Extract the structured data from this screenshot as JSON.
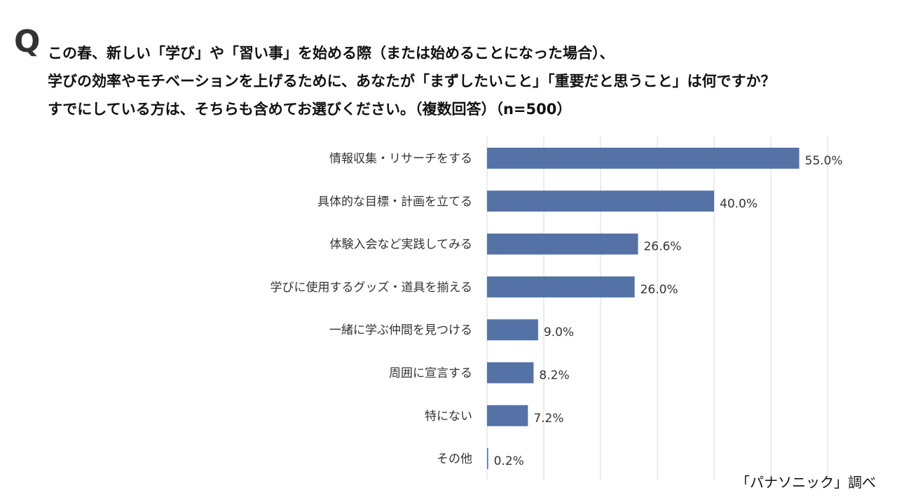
{
  "question": {
    "mark": "Q",
    "lines": [
      "この春、新しい「学び」や「習い事」を始める際（または始めることになった場合）、",
      "学びの効率やモチベーションを上げるために、あなたが「まずしたいこと」「重要だと思うこと」は何ですか？",
      "すでにしている方は、そちらも含めてお選びください。（複数回答）（n=500）"
    ]
  },
  "chart_data": {
    "type": "bar",
    "orientation": "horizontal",
    "categories": [
      "情報収集・リサーチをする",
      "具体的な目標・計画を立てる",
      "体験入会など実践してみる",
      "学びに使用するグッズ・道具を揃える",
      "一緒に学ぶ仲間を見つける",
      "周囲に宣言する",
      "特にない",
      "その他"
    ],
    "values": [
      55.0,
      40.0,
      26.6,
      26.0,
      9.0,
      8.2,
      7.2,
      0.2
    ],
    "value_labels": [
      "55.0%",
      "40.0%",
      "26.6%",
      "26.0%",
      "9.0%",
      "8.2%",
      "7.2%",
      "0.2%"
    ],
    "xlim": [
      0,
      60
    ],
    "grid": true,
    "bar_color": "#5472a6",
    "grid_color": "#d9d9d9"
  },
  "source": "「パナソニック」調べ"
}
